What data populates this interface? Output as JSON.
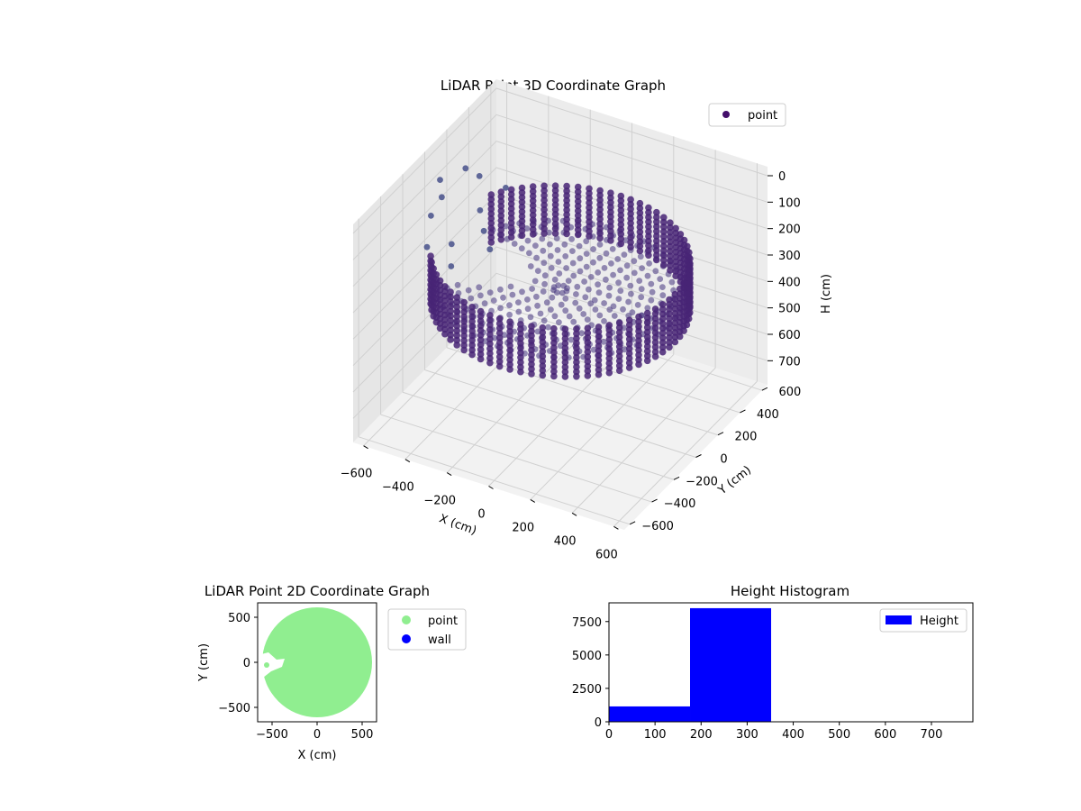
{
  "chart_data": [
    {
      "type": "scatter3d",
      "title": "LiDAR Point 3D Coordinate Graph",
      "xlabel": "X (cm)",
      "ylabel": "Y (cm)",
      "zlabel": "H (cm)",
      "xlim": [
        -650,
        650
      ],
      "ylim": [
        -650,
        650
      ],
      "zlim": [
        750,
        0
      ],
      "z_inverted": true,
      "xticks": [
        -600,
        -400,
        -200,
        0,
        200,
        400,
        600
      ],
      "yticks": [
        -600,
        -400,
        -200,
        0,
        200,
        400,
        600
      ],
      "zticks": [
        0,
        100,
        200,
        300,
        400,
        500,
        600,
        700
      ],
      "grid": true,
      "legend": {
        "placement": "top-right",
        "entries": [
          {
            "label": "point",
            "color": "#440f6b"
          }
        ]
      },
      "ring": {
        "outer_radius": 550,
        "inner_radius_floor": 300,
        "h_top": 200,
        "h_bottom": 300,
        "h_floor": 320,
        "open_sector_deg": [
          155,
          205
        ]
      },
      "colors": {
        "ring": "#482475",
        "floor": "#453580",
        "stray": "#46508a"
      }
    },
    {
      "type": "scatter",
      "title": "LiDAR Point 2D Coordinate Graph",
      "xlabel": "X (cm)",
      "ylabel": "Y (cm)",
      "xlim": [
        -660,
        660
      ],
      "ylim": [
        -660,
        660
      ],
      "xticks": [
        -500,
        0,
        500
      ],
      "yticks": [
        -500,
        0,
        500
      ],
      "legend": {
        "placement": "outside-right",
        "entries": [
          {
            "label": "point",
            "color": "#90ee90"
          },
          {
            "label": "wall",
            "color": "#0000ff"
          }
        ]
      },
      "disk_radius": 600,
      "colors": {
        "point": "#90ee90",
        "wall": "#0000ff"
      }
    },
    {
      "type": "bar",
      "title": "Height Histogram",
      "xlim": [
        0,
        790
      ],
      "ylim": [
        0,
        8900
      ],
      "xticks": [
        0,
        100,
        200,
        300,
        400,
        500,
        600,
        700
      ],
      "yticks": [
        0,
        2500,
        5000,
        7500
      ],
      "bins": [
        {
          "x0": 0,
          "x1": 176,
          "count": 1150
        },
        {
          "x0": 176,
          "x1": 352,
          "count": 8500
        }
      ],
      "legend": {
        "placement": "top-right",
        "entries": [
          {
            "label": "Height",
            "color": "#0000ff"
          }
        ]
      },
      "color": "#0000ff"
    }
  ]
}
